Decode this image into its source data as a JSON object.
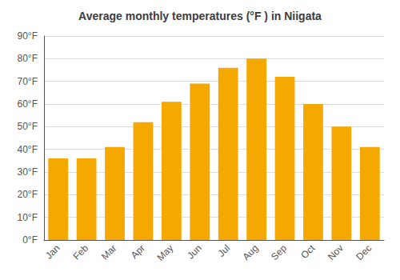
{
  "chart_data": {
    "type": "bar",
    "title": "Average monthly temperatures (°F ) in Niigata",
    "categories": [
      "Jan",
      "Feb",
      "Mar",
      "Apr",
      "May",
      "Jun",
      "Jul",
      "Aug",
      "Sep",
      "Oct",
      "Nov",
      "Dec"
    ],
    "values": [
      36,
      36,
      41,
      52,
      61,
      69,
      76,
      80,
      72,
      60,
      50,
      41
    ],
    "color": "#F5A800",
    "ylim": [
      0,
      90
    ],
    "yticks": [
      {
        "value": 0,
        "label": "0°F"
      },
      {
        "value": 10,
        "label": "10°F"
      },
      {
        "value": 20,
        "label": "20°F"
      },
      {
        "value": 30,
        "label": "30°F"
      },
      {
        "value": 40,
        "label": "40°F"
      },
      {
        "value": 50,
        "label": "50°F"
      },
      {
        "value": 60,
        "label": "60°F"
      },
      {
        "value": 70,
        "label": "70°F"
      },
      {
        "value": 80,
        "label": "80°F"
      },
      {
        "value": 90,
        "label": "90°F"
      }
    ],
    "grid": true
  }
}
